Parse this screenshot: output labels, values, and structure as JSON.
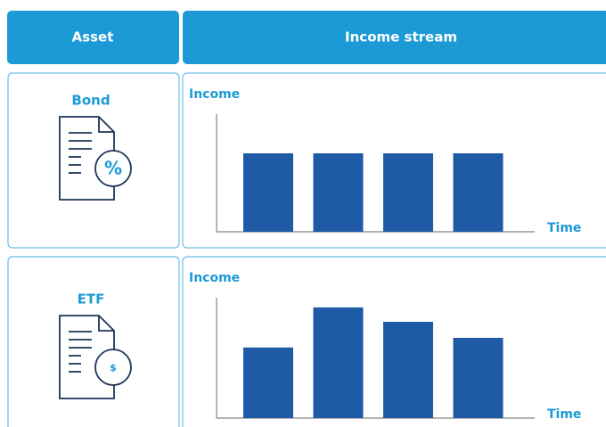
{
  "header": {
    "asset": "Asset",
    "income_stream": "Income stream"
  },
  "ylim": [
    0,
    7.5
  ],
  "rows": [
    {
      "asset": "Bond",
      "icon_text": "%",
      "y_label": "Income",
      "x_label": "Time",
      "values": [
        5,
        5,
        5,
        5
      ]
    },
    {
      "asset": "ETF",
      "icon_text": "$",
      "y_label": "Income",
      "x_label": "Time",
      "values": [
        4.4,
        6.9,
        6,
        5
      ]
    }
  ],
  "bar_color": "#1f5aa6"
}
